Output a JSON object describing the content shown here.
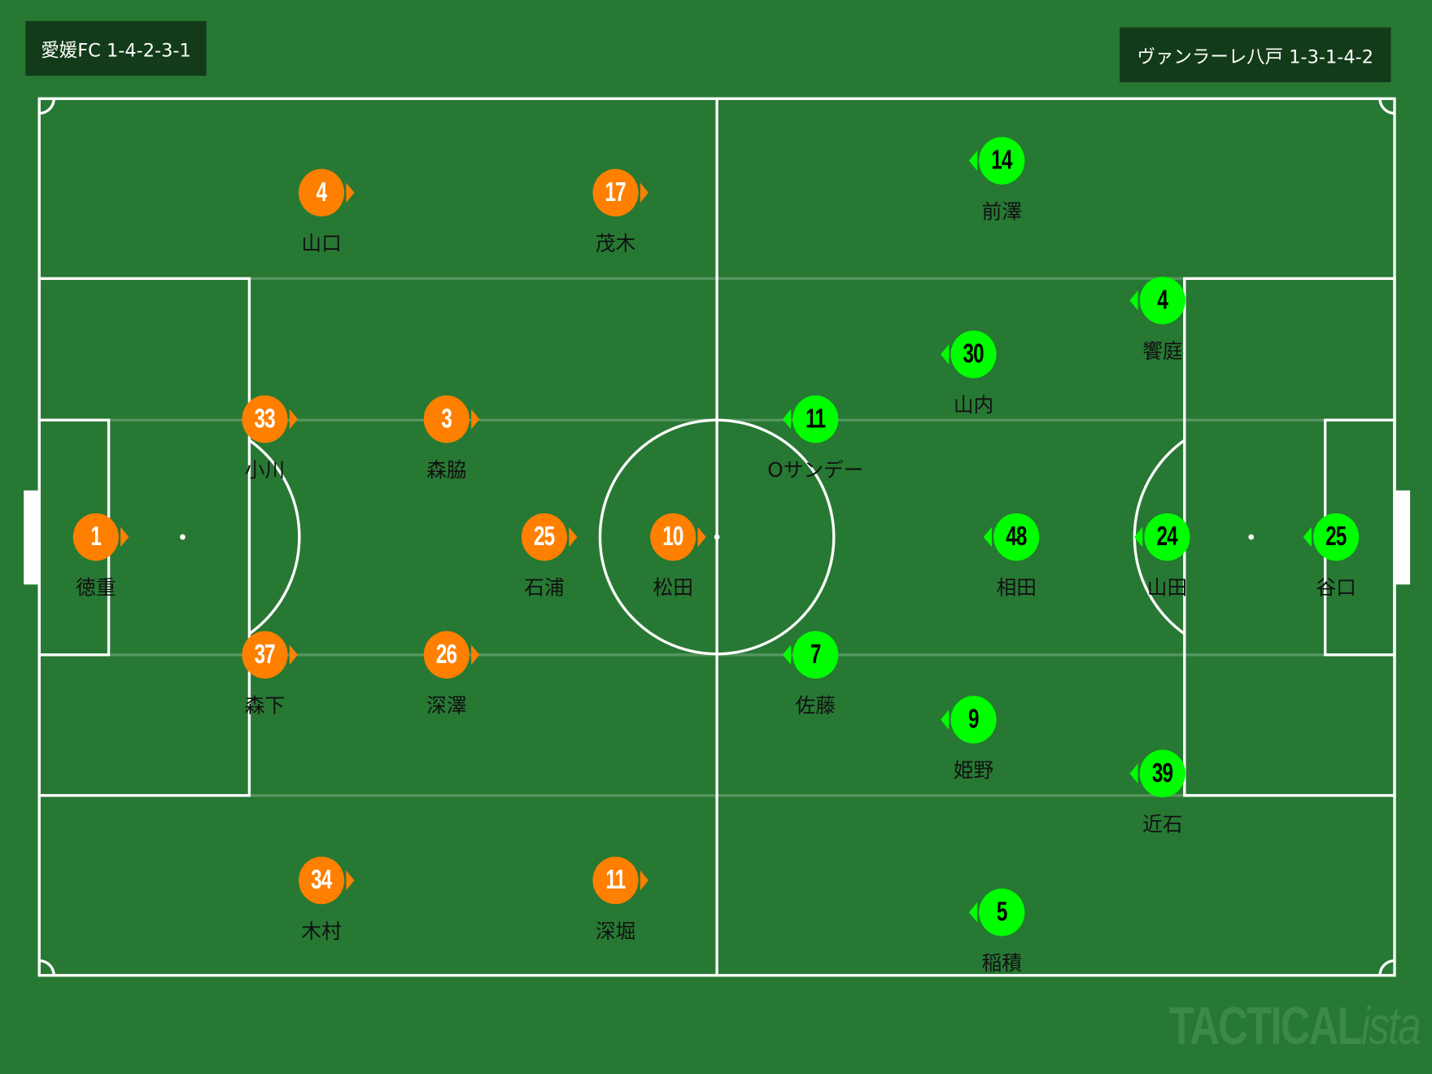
{
  "home": {
    "label": "愛媛FC 1-4-2-3-1",
    "color": "#ff8000",
    "players": [
      {
        "number": "1",
        "name": "徳重"
      },
      {
        "number": "33",
        "name": "小川"
      },
      {
        "number": "37",
        "name": "森下"
      },
      {
        "number": "3",
        "name": "森脇"
      },
      {
        "number": "26",
        "name": "深澤"
      },
      {
        "number": "4",
        "name": "山口"
      },
      {
        "number": "17",
        "name": "茂木"
      },
      {
        "number": "25",
        "name": "石浦"
      },
      {
        "number": "10",
        "name": "松田"
      },
      {
        "number": "34",
        "name": "木村"
      },
      {
        "number": "11",
        "name": "深堀"
      }
    ]
  },
  "away": {
    "label": "ヴァンラーレ八戸 1-3-1-4-2",
    "color": "#00ff00",
    "players": [
      {
        "number": "14",
        "name": "前澤"
      },
      {
        "number": "4",
        "name": "饗庭"
      },
      {
        "number": "30",
        "name": "山内"
      },
      {
        "number": "11",
        "name": "Oサンデー"
      },
      {
        "number": "48",
        "name": "相田"
      },
      {
        "number": "24",
        "name": "山田"
      },
      {
        "number": "25",
        "name": "谷口"
      },
      {
        "number": "7",
        "name": "佐藤"
      },
      {
        "number": "9",
        "name": "姫野"
      },
      {
        "number": "39",
        "name": "近石"
      },
      {
        "number": "5",
        "name": "稲積"
      }
    ]
  },
  "watermark": {
    "main": "TACTICAL",
    "suffix": "ista"
  },
  "colors": {
    "pitch": "#277833",
    "label_bg": "#133b19",
    "lines": "#ffffff"
  }
}
